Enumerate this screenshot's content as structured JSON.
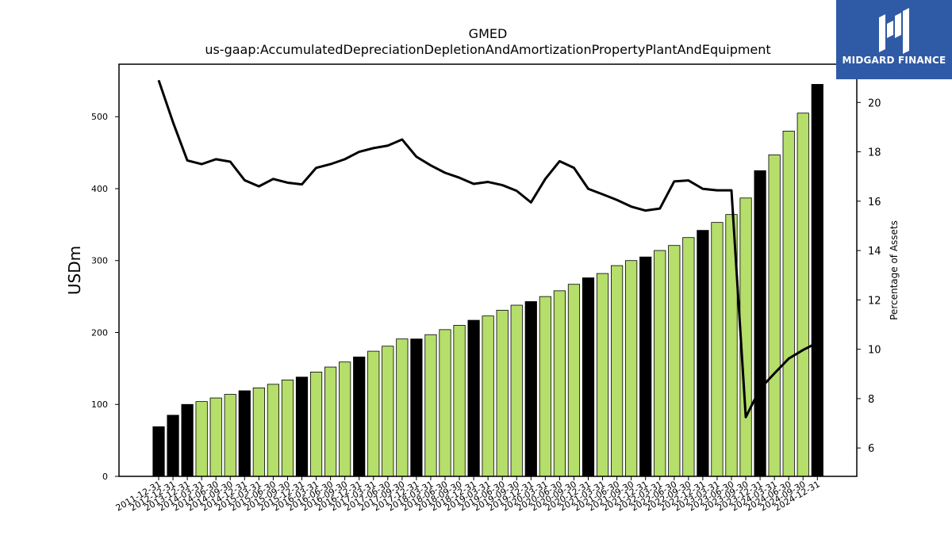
{
  "chart_data": {
    "type": "bar",
    "title": "GMED",
    "subtitle": "us-gaap:AccumulatedDepreciationDepletionAndAmortizationPropertyPlantAndEquipment",
    "ylabel": "USDm",
    "y2label": "Percentage of Assets",
    "ylim": [
      0,
      573
    ],
    "y2lim": [
      4.85,
      21.55
    ],
    "yticks": [
      0,
      100,
      200,
      300,
      400,
      500
    ],
    "y2ticks": [
      6,
      8,
      10,
      12,
      14,
      16,
      18,
      20
    ],
    "categories": [
      "2011-12-31",
      "2012-12-31",
      "2013-12-31",
      "2014-03-31",
      "2014-06-30",
      "2014-09-30",
      "2014-12-31",
      "2015-03-31",
      "2015-06-30",
      "2015-09-30",
      "2015-12-31",
      "2016-03-31",
      "2016-06-30",
      "2016-09-30",
      "2016-12-31",
      "2017-03-31",
      "2017-06-30",
      "2017-09-30",
      "2017-12-31",
      "2018-03-31",
      "2018-06-30",
      "2018-09-30",
      "2018-12-31",
      "2019-03-31",
      "2019-06-30",
      "2019-09-30",
      "2019-12-31",
      "2020-03-31",
      "2020-06-30",
      "2020-09-30",
      "2020-12-31",
      "2021-03-31",
      "2021-06-30",
      "2021-09-30",
      "2021-12-31",
      "2022-03-31",
      "2022-06-30",
      "2022-09-30",
      "2022-12-31",
      "2023-03-31",
      "2023-06-30",
      "2023-09-30",
      "2023-12-31",
      "2024-03-31",
      "2024-06-30",
      "2024-09-30",
      "2024-12-31"
    ],
    "series": [
      {
        "type": "bar",
        "values": [
          69,
          85,
          100,
          104,
          109,
          114,
          119,
          123,
          128,
          134,
          138,
          145,
          152,
          159,
          166,
          174,
          181,
          191,
          191,
          197,
          204,
          210,
          217,
          223,
          231,
          238,
          243,
          250,
          258,
          267,
          276,
          282,
          293,
          300,
          305,
          314,
          321,
          332,
          342,
          353,
          364,
          387,
          425,
          447,
          480,
          505,
          545
        ],
        "colors": [
          "#000000",
          "#000000",
          "#000000",
          "#b5de6a",
          "#b5de6a",
          "#b5de6a",
          "#000000",
          "#b5de6a",
          "#b5de6a",
          "#b5de6a",
          "#000000",
          "#b5de6a",
          "#b5de6a",
          "#b5de6a",
          "#000000",
          "#b5de6a",
          "#b5de6a",
          "#b5de6a",
          "#000000",
          "#b5de6a",
          "#b5de6a",
          "#b5de6a",
          "#000000",
          "#b5de6a",
          "#b5de6a",
          "#b5de6a",
          "#000000",
          "#b5de6a",
          "#b5de6a",
          "#b5de6a",
          "#000000",
          "#b5de6a",
          "#b5de6a",
          "#b5de6a",
          "#000000",
          "#b5de6a",
          "#b5de6a",
          "#b5de6a",
          "#000000",
          "#b5de6a",
          "#b5de6a",
          "#b5de6a",
          "#000000",
          "#b5de6a",
          "#b5de6a",
          "#b5de6a",
          "#000000"
        ]
      },
      {
        "type": "line",
        "axis": "right",
        "color": "#000000",
        "values": [
          20.9,
          19.2,
          17.65,
          17.5,
          17.7,
          17.6,
          16.85,
          16.6,
          16.9,
          16.75,
          16.68,
          17.35,
          17.5,
          17.7,
          18.0,
          18.15,
          18.25,
          18.5,
          17.8,
          17.45,
          17.15,
          16.95,
          16.7,
          16.78,
          16.65,
          16.42,
          15.95,
          16.9,
          17.62,
          17.35,
          16.5,
          16.28,
          16.05,
          15.78,
          15.62,
          15.7,
          16.8,
          16.84,
          16.5,
          16.44,
          16.44,
          7.25,
          8.4,
          9.02,
          9.62,
          9.97,
          10.27
        ]
      }
    ],
    "grid": false,
    "legend": "none"
  },
  "logo": {
    "name": "MIDGARD FINANCE"
  }
}
